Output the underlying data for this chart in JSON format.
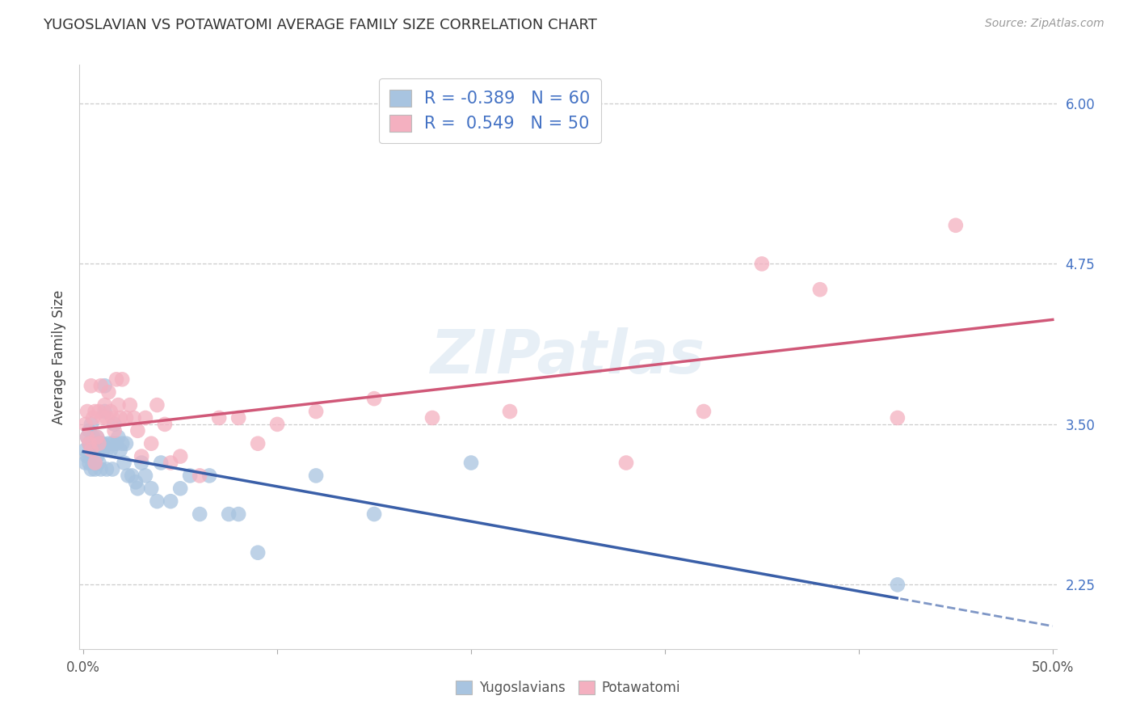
{
  "title": "YUGOSLAVIAN VS POTAWATOMI AVERAGE FAMILY SIZE CORRELATION CHART",
  "source": "Source: ZipAtlas.com",
  "ylabel": "Average Family Size",
  "y_ticks": [
    2.25,
    3.5,
    4.75,
    6.0
  ],
  "y_min": 1.75,
  "y_max": 6.3,
  "x_min": -0.002,
  "x_max": 0.502,
  "blue_color": "#a8c4e0",
  "pink_color": "#f4b0c0",
  "blue_line_color": "#3a5fa8",
  "pink_line_color": "#d05878",
  "blue_r": -0.389,
  "blue_n": 60,
  "pink_r": 0.549,
  "pink_n": 50,
  "watermark": "ZIPatlas",
  "blue_scatter_x": [
    0.001,
    0.001,
    0.002,
    0.002,
    0.003,
    0.003,
    0.003,
    0.004,
    0.004,
    0.004,
    0.005,
    0.005,
    0.005,
    0.006,
    0.006,
    0.007,
    0.007,
    0.007,
    0.008,
    0.008,
    0.009,
    0.009,
    0.01,
    0.01,
    0.011,
    0.011,
    0.012,
    0.012,
    0.013,
    0.014,
    0.015,
    0.015,
    0.016,
    0.017,
    0.018,
    0.019,
    0.02,
    0.021,
    0.022,
    0.023,
    0.025,
    0.027,
    0.028,
    0.03,
    0.032,
    0.035,
    0.038,
    0.04,
    0.045,
    0.05,
    0.055,
    0.06,
    0.065,
    0.075,
    0.08,
    0.09,
    0.12,
    0.15,
    0.2,
    0.42
  ],
  "blue_scatter_y": [
    3.3,
    3.2,
    3.4,
    3.25,
    3.35,
    3.45,
    3.2,
    3.5,
    3.15,
    3.35,
    3.3,
    3.4,
    3.2,
    3.35,
    3.15,
    3.4,
    3.25,
    3.3,
    3.35,
    3.2,
    3.35,
    3.15,
    3.35,
    3.3,
    3.8,
    3.6,
    3.3,
    3.15,
    3.35,
    3.3,
    3.35,
    3.15,
    3.5,
    3.35,
    3.4,
    3.3,
    3.35,
    3.2,
    3.35,
    3.1,
    3.1,
    3.05,
    3.0,
    3.2,
    3.1,
    3.0,
    2.9,
    3.2,
    2.9,
    3.0,
    3.1,
    2.8,
    3.1,
    2.8,
    2.8,
    2.5,
    3.1,
    2.8,
    3.2,
    2.25
  ],
  "pink_scatter_x": [
    0.001,
    0.002,
    0.002,
    0.003,
    0.004,
    0.004,
    0.005,
    0.006,
    0.006,
    0.007,
    0.008,
    0.008,
    0.009,
    0.01,
    0.011,
    0.012,
    0.013,
    0.014,
    0.015,
    0.016,
    0.017,
    0.018,
    0.019,
    0.02,
    0.022,
    0.024,
    0.026,
    0.028,
    0.03,
    0.032,
    0.035,
    0.038,
    0.042,
    0.045,
    0.05,
    0.06,
    0.07,
    0.08,
    0.09,
    0.1,
    0.12,
    0.15,
    0.18,
    0.22,
    0.28,
    0.32,
    0.35,
    0.38,
    0.42,
    0.45
  ],
  "pink_scatter_y": [
    3.5,
    3.4,
    3.6,
    3.35,
    3.3,
    3.8,
    3.55,
    3.2,
    3.6,
    3.4,
    3.35,
    3.6,
    3.8,
    3.55,
    3.65,
    3.55,
    3.75,
    3.6,
    3.55,
    3.45,
    3.85,
    3.65,
    3.55,
    3.85,
    3.55,
    3.65,
    3.55,
    3.45,
    3.25,
    3.55,
    3.35,
    3.65,
    3.5,
    3.2,
    3.25,
    3.1,
    3.55,
    3.55,
    3.35,
    3.5,
    3.6,
    3.7,
    3.55,
    3.6,
    3.2,
    3.6,
    4.75,
    4.55,
    3.55,
    5.05
  ]
}
